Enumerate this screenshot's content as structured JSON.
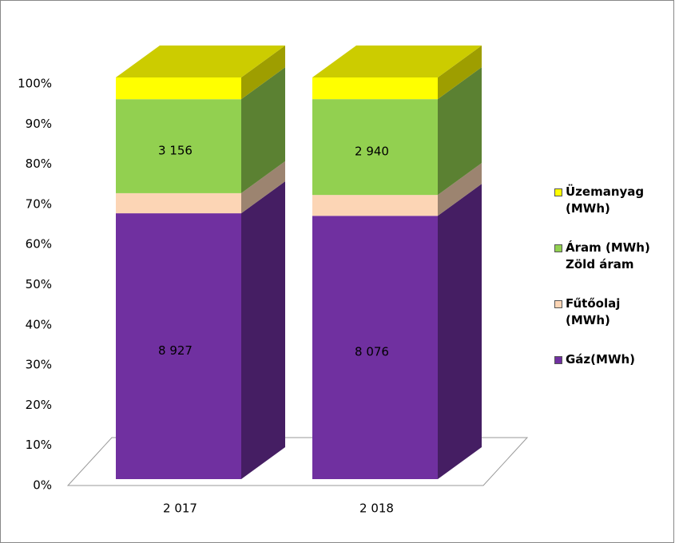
{
  "chart_data": {
    "type": "bar",
    "stacking": "percent",
    "categories": [
      "2 017",
      "2 018"
    ],
    "series": [
      {
        "name": "Gáz(MWh)",
        "color": "#7030a0",
        "values": [
          8927,
          8076
        ],
        "value_labels": [
          "8 927",
          "8 076"
        ]
      },
      {
        "name": "Fűtőolaj (MWh)",
        "color": "#fcd5b5",
        "values": [
          675,
          640
        ]
      },
      {
        "name": "Áram (MWh) Zöld áram",
        "color": "#92d050",
        "values": [
          3156,
          2940
        ],
        "value_labels": [
          "3 156",
          "2 940"
        ]
      },
      {
        "name": "Üzemanyag (MWh)",
        "color": "#ffff00",
        "values": [
          730,
          665
        ]
      }
    ],
    "ylim": [
      0,
      100
    ],
    "yticks": [
      {
        "value": 0,
        "label": "0%"
      },
      {
        "value": 10,
        "label": "10%"
      },
      {
        "value": 20,
        "label": "20%"
      },
      {
        "value": 30,
        "label": "30%"
      },
      {
        "value": 40,
        "label": "40%"
      },
      {
        "value": 50,
        "label": "50%"
      },
      {
        "value": 60,
        "label": "60%"
      },
      {
        "value": 70,
        "label": "70%"
      },
      {
        "value": 80,
        "label": "80%"
      },
      {
        "value": 90,
        "label": "90%"
      },
      {
        "value": 100,
        "label": "100%"
      }
    ],
    "legend": "right"
  }
}
